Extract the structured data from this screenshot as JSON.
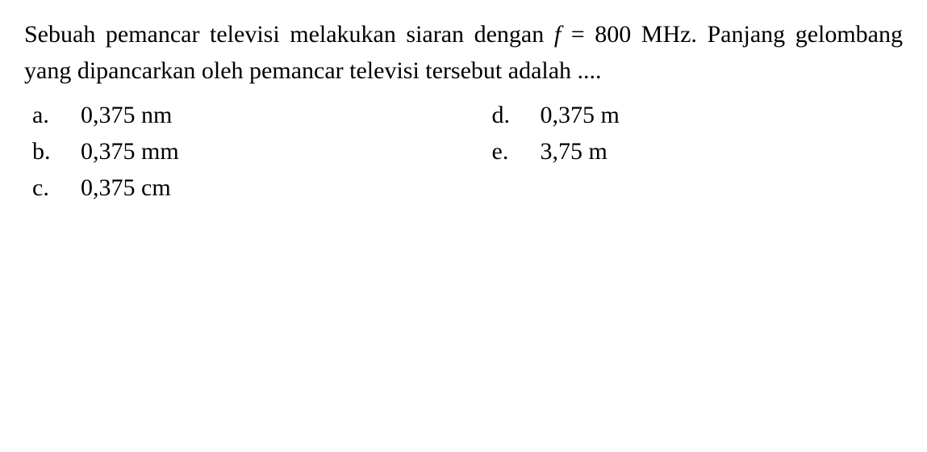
{
  "question": {
    "text_parts": {
      "part1": "Sebuah pemancar televisi melakukan siaran dengan ",
      "variable": "f",
      "equals": " = 800 MHz. Panjang gelombang yang dipancarkan oleh pemancar televisi tersebut adalah ...."
    }
  },
  "options": {
    "a": {
      "letter": "a.",
      "value": "0,375 nm"
    },
    "b": {
      "letter": "b.",
      "value": "0,375 mm"
    },
    "c": {
      "letter": "c.",
      "value": "0,375 cm"
    },
    "d": {
      "letter": "d.",
      "value": "0,375 m"
    },
    "e": {
      "letter": "e.",
      "value": "3,75 m"
    }
  },
  "styling": {
    "font_family": "Times New Roman",
    "font_size_pt": 30,
    "text_color": "#000000",
    "background_color": "#ffffff"
  }
}
